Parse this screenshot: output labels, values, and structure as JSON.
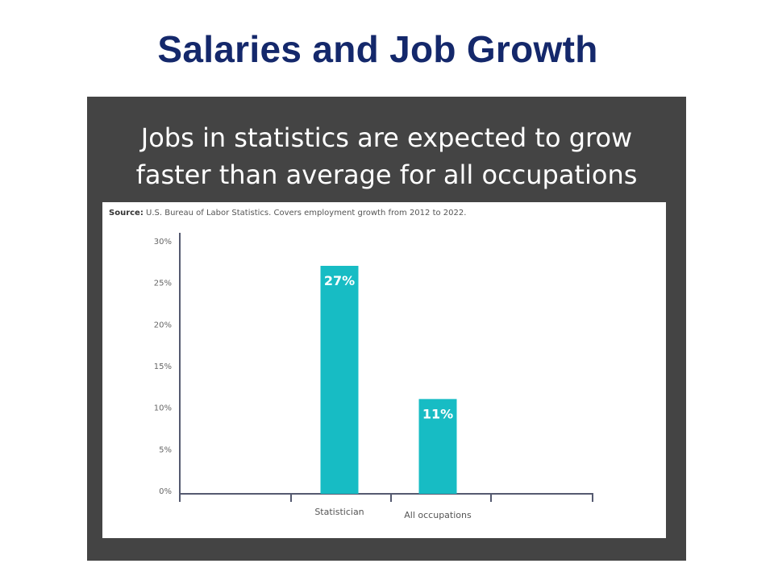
{
  "slide": {
    "title": "Salaries and Job Growth"
  },
  "infographic": {
    "headline_line1": "Jobs in statistics are expected to grow",
    "headline_line2": "faster than average for all occupations",
    "source_label": "Source:",
    "source_text": "U.S. Bureau of Labor Statistics. Covers employment growth from 2012 to 2022."
  },
  "colors": {
    "bar": "#17bcc4",
    "axis": "#555a70",
    "title": "#14286b",
    "frame": "#444444"
  },
  "chart_data": {
    "type": "bar",
    "categories": [
      "Statistician",
      "All occupations"
    ],
    "values": [
      27,
      11
    ],
    "value_labels": [
      "27%",
      "11%"
    ],
    "ylim": [
      0,
      30
    ],
    "yticks": [
      0,
      5,
      10,
      15,
      20,
      25,
      30
    ],
    "ytick_labels": [
      "0%",
      "5%",
      "10%",
      "15%",
      "20%",
      "25%",
      "30%"
    ],
    "grid": false,
    "legend": "none"
  }
}
